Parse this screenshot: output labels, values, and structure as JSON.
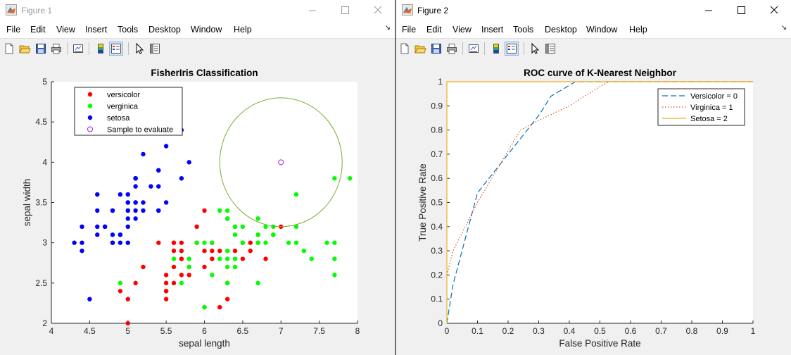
{
  "figure1": {
    "title": "Figure 1",
    "menu": [
      "File",
      "Edit",
      "View",
      "Insert",
      "Tools",
      "Desktop",
      "Window",
      "Help"
    ],
    "toolbar": [
      "new-figure-icon",
      "open-file-icon",
      "save-icon",
      "print-icon",
      "link-plot-icon",
      "colorbar-icon",
      "legend-icon",
      "pointer-icon",
      "property-editor-icon"
    ]
  },
  "figure2": {
    "title": "Figure 2",
    "menu": [
      "File",
      "Edit",
      "View",
      "Insert",
      "Tools",
      "Desktop",
      "Window",
      "Help"
    ],
    "toolbar": [
      "new-figure-icon",
      "open-file-icon",
      "save-icon",
      "print-icon",
      "link-plot-icon",
      "colorbar-icon",
      "legend-icon",
      "pointer-icon",
      "property-editor-icon"
    ]
  },
  "colors": {
    "versicolor": "#ff0000",
    "verginica": "#00ff00",
    "setosa": "#0000ff",
    "sample": "#a020f0",
    "circle": "#77ac30",
    "roc_versicolor": "#0072bd",
    "roc_verginica": "#d95319",
    "roc_setosa": "#edb120"
  },
  "chart_data": [
    {
      "type": "scatter",
      "title": "FisherIris Classification",
      "xlabel": "sepal length",
      "ylabel": "sepal width",
      "xlim": [
        4,
        8
      ],
      "ylim": [
        2,
        5
      ],
      "xticks": [
        "4",
        "4.5",
        "5",
        "5.5",
        "6",
        "6.5",
        "7",
        "7.5",
        "8"
      ],
      "yticks": [
        "2",
        "2.5",
        "3",
        "3.5",
        "4",
        "4.5",
        "5"
      ],
      "legend": [
        "versicolor",
        "verginica",
        "setosa",
        "Sample to evaluate"
      ],
      "legend_position": "top-left",
      "series": [
        {
          "name": "versicolor",
          "points": [
            [
              7.0,
              3.2
            ],
            [
              6.4,
              3.2
            ],
            [
              6.9,
              3.1
            ],
            [
              5.5,
              2.3
            ],
            [
              6.5,
              2.8
            ],
            [
              5.7,
              2.8
            ],
            [
              6.3,
              3.3
            ],
            [
              4.9,
              2.4
            ],
            [
              6.6,
              2.9
            ],
            [
              5.2,
              2.7
            ],
            [
              5.0,
              2.0
            ],
            [
              5.9,
              3.0
            ],
            [
              6.0,
              2.2
            ],
            [
              6.1,
              2.9
            ],
            [
              5.6,
              2.9
            ],
            [
              6.7,
              3.1
            ],
            [
              5.6,
              3.0
            ],
            [
              5.8,
              2.7
            ],
            [
              6.2,
              2.2
            ],
            [
              5.6,
              2.5
            ],
            [
              5.9,
              3.2
            ],
            [
              6.1,
              2.8
            ],
            [
              6.3,
              2.5
            ],
            [
              6.1,
              2.8
            ],
            [
              6.4,
              2.9
            ],
            [
              6.6,
              3.0
            ],
            [
              6.8,
              2.8
            ],
            [
              6.7,
              3.0
            ],
            [
              6.0,
              2.9
            ],
            [
              5.7,
              2.6
            ],
            [
              5.5,
              2.4
            ],
            [
              5.5,
              2.4
            ],
            [
              5.8,
              2.7
            ],
            [
              6.0,
              2.7
            ],
            [
              5.4,
              3.0
            ],
            [
              6.0,
              3.4
            ],
            [
              6.7,
              3.1
            ],
            [
              6.3,
              2.3
            ],
            [
              5.6,
              3.0
            ],
            [
              5.5,
              2.5
            ],
            [
              5.5,
              2.6
            ],
            [
              6.1,
              3.0
            ],
            [
              5.8,
              2.6
            ],
            [
              5.0,
              2.3
            ],
            [
              5.6,
              2.7
            ],
            [
              5.7,
              3.0
            ],
            [
              5.7,
              2.9
            ],
            [
              6.2,
              2.9
            ],
            [
              5.1,
              2.5
            ],
            [
              5.7,
              2.8
            ]
          ]
        },
        {
          "name": "verginica",
          "points": [
            [
              6.3,
              3.3
            ],
            [
              5.8,
              2.7
            ],
            [
              7.1,
              3.0
            ],
            [
              6.3,
              2.9
            ],
            [
              6.5,
              3.0
            ],
            [
              7.6,
              3.0
            ],
            [
              4.9,
              2.5
            ],
            [
              7.3,
              2.9
            ],
            [
              6.7,
              2.5
            ],
            [
              7.2,
              3.6
            ],
            [
              6.5,
              3.2
            ],
            [
              6.4,
              2.7
            ],
            [
              6.8,
              3.0
            ],
            [
              5.7,
              2.5
            ],
            [
              5.8,
              2.8
            ],
            [
              6.4,
              3.2
            ],
            [
              6.5,
              3.0
            ],
            [
              7.7,
              3.8
            ],
            [
              7.7,
              2.6
            ],
            [
              6.0,
              2.2
            ],
            [
              6.9,
              3.2
            ],
            [
              5.6,
              2.8
            ],
            [
              7.7,
              2.8
            ],
            [
              6.3,
              2.7
            ],
            [
              6.7,
              3.3
            ],
            [
              7.2,
              3.2
            ],
            [
              6.2,
              2.8
            ],
            [
              6.1,
              3.0
            ],
            [
              6.4,
              2.8
            ],
            [
              7.2,
              3.0
            ],
            [
              7.4,
              2.8
            ],
            [
              7.9,
              3.8
            ],
            [
              6.4,
              2.8
            ],
            [
              6.3,
              2.8
            ],
            [
              6.1,
              2.6
            ],
            [
              7.7,
              3.0
            ],
            [
              6.3,
              3.4
            ],
            [
              6.4,
              3.1
            ],
            [
              6.0,
              3.0
            ],
            [
              6.9,
              3.1
            ],
            [
              6.7,
              3.1
            ],
            [
              6.9,
              3.1
            ],
            [
              5.8,
              2.7
            ],
            [
              6.8,
              3.2
            ],
            [
              6.7,
              3.3
            ],
            [
              6.7,
              3.0
            ],
            [
              6.3,
              2.5
            ],
            [
              6.5,
              3.0
            ],
            [
              6.2,
              3.4
            ],
            [
              5.9,
              3.0
            ]
          ]
        },
        {
          "name": "setosa",
          "points": [
            [
              5.1,
              3.5
            ],
            [
              4.9,
              3.0
            ],
            [
              4.7,
              3.2
            ],
            [
              4.6,
              3.1
            ],
            [
              5.0,
              3.6
            ],
            [
              5.4,
              3.9
            ],
            [
              4.6,
              3.4
            ],
            [
              5.0,
              3.4
            ],
            [
              4.4,
              2.9
            ],
            [
              4.9,
              3.1
            ],
            [
              5.4,
              3.7
            ],
            [
              4.8,
              3.4
            ],
            [
              4.8,
              3.0
            ],
            [
              4.3,
              3.0
            ],
            [
              5.8,
              4.0
            ],
            [
              5.7,
              4.4
            ],
            [
              5.4,
              3.9
            ],
            [
              5.1,
              3.5
            ],
            [
              5.7,
              3.8
            ],
            [
              5.1,
              3.8
            ],
            [
              5.4,
              3.4
            ],
            [
              5.1,
              3.7
            ],
            [
              4.6,
              3.6
            ],
            [
              5.1,
              3.3
            ],
            [
              4.8,
              3.4
            ],
            [
              5.0,
              3.0
            ],
            [
              5.0,
              3.4
            ],
            [
              5.2,
              3.5
            ],
            [
              5.2,
              3.4
            ],
            [
              4.7,
              3.2
            ],
            [
              4.8,
              3.1
            ],
            [
              5.4,
              3.4
            ],
            [
              5.2,
              4.1
            ],
            [
              5.5,
              4.2
            ],
            [
              4.9,
              3.1
            ],
            [
              5.0,
              3.2
            ],
            [
              5.5,
              3.5
            ],
            [
              4.9,
              3.6
            ],
            [
              4.4,
              3.0
            ],
            [
              5.1,
              3.4
            ],
            [
              5.0,
              3.5
            ],
            [
              4.5,
              2.3
            ],
            [
              4.4,
              3.2
            ],
            [
              5.0,
              3.5
            ],
            [
              5.1,
              3.8
            ],
            [
              4.8,
              3.0
            ],
            [
              5.1,
              3.8
            ],
            [
              4.6,
              3.2
            ],
            [
              5.3,
              3.7
            ],
            [
              5.0,
              3.3
            ]
          ]
        },
        {
          "name": "Sample to evaluate",
          "points": [
            [
              7.0,
              4.0
            ]
          ]
        }
      ],
      "circle": {
        "center": [
          7.0,
          4.0
        ],
        "radius": 0.8
      }
    },
    {
      "type": "line",
      "title": "ROC curve of K-Nearest Neighbor",
      "xlabel": "False Positive Rate",
      "ylabel": "True Positive Rate",
      "xlim": [
        0,
        1
      ],
      "ylim": [
        0,
        1
      ],
      "xticks": [
        "0",
        "0.1",
        "0.2",
        "0.3",
        "0.4",
        "0.5",
        "0.6",
        "0.7",
        "0.8",
        "0.9",
        "1"
      ],
      "yticks": [
        "0",
        "0.1",
        "0.2",
        "0.3",
        "0.4",
        "0.5",
        "0.6",
        "0.7",
        "0.8",
        "0.9",
        "1"
      ],
      "legend_position": "top-right",
      "series": [
        {
          "name": "Versicolor = 0",
          "style": "dashed",
          "x": [
            0,
            0.02,
            0.1,
            0.2,
            0.3,
            0.34,
            0.42,
            0.44,
            1
          ],
          "y": [
            0,
            0.16,
            0.54,
            0.7,
            0.86,
            0.94,
            1,
            1,
            1
          ]
        },
        {
          "name": "Virginica = 1",
          "style": "dotted",
          "x": [
            0,
            0.02,
            0.1,
            0.24,
            0.3,
            0.4,
            0.5,
            0.53,
            1
          ],
          "y": [
            0.2,
            0.3,
            0.5,
            0.8,
            0.84,
            0.9,
            0.98,
            1,
            1
          ]
        },
        {
          "name": "Setosa = 2",
          "style": "solid",
          "x": [
            0,
            0,
            1
          ],
          "y": [
            0,
            1,
            1
          ]
        }
      ]
    }
  ]
}
